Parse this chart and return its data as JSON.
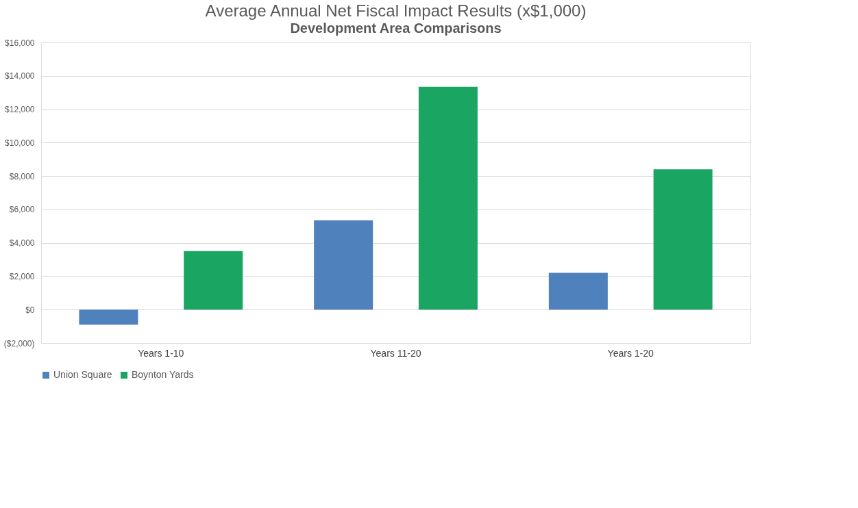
{
  "chart_data": {
    "type": "bar",
    "title": "Average Annual Net Fiscal Impact Results (x$1,000)",
    "subtitle": "Development Area Comparisons",
    "categories": [
      "Years 1-10",
      "Years 11-20",
      "Years 1-20"
    ],
    "series": [
      {
        "name": "Union Square",
        "color": "#4f81bd",
        "values": [
          -900,
          5350,
          2200
        ]
      },
      {
        "name": "Boynton Yards",
        "color": "#1aa563",
        "values": [
          3500,
          13350,
          8400
        ]
      }
    ],
    "ylim": [
      -2000,
      16000
    ],
    "yticks": [
      {
        "value": -2000,
        "label": "($2,000)"
      },
      {
        "value": 0,
        "label": "$0"
      },
      {
        "value": 2000,
        "label": "$2,000"
      },
      {
        "value": 4000,
        "label": "$4,000"
      },
      {
        "value": 6000,
        "label": "$6,000"
      },
      {
        "value": 8000,
        "label": "$8,000"
      },
      {
        "value": 10000,
        "label": "$10,000"
      },
      {
        "value": 12000,
        "label": "$12,000"
      },
      {
        "value": 14000,
        "label": "$14,000"
      },
      {
        "value": 16000,
        "label": "$16,000"
      }
    ],
    "grid": "y",
    "legend": "bottom"
  }
}
